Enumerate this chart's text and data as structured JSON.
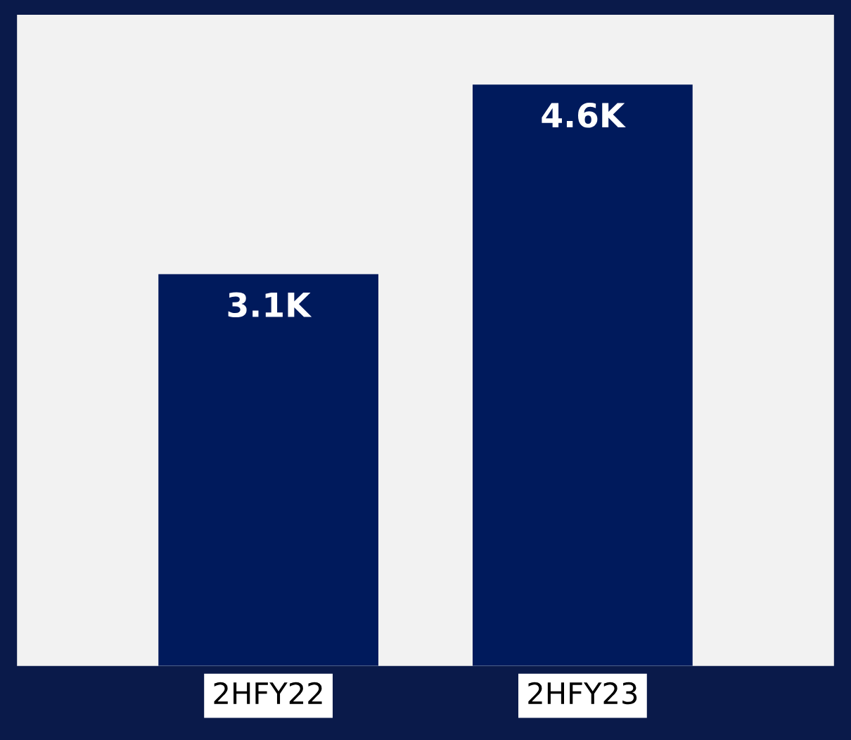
{
  "chart_data": {
    "type": "bar",
    "categories": [
      "2HFY22",
      "2HFY23"
    ],
    "values": [
      3.1,
      4.6
    ],
    "value_labels": [
      "3.1K",
      "4.6K"
    ],
    "color": "#001a5c"
  }
}
